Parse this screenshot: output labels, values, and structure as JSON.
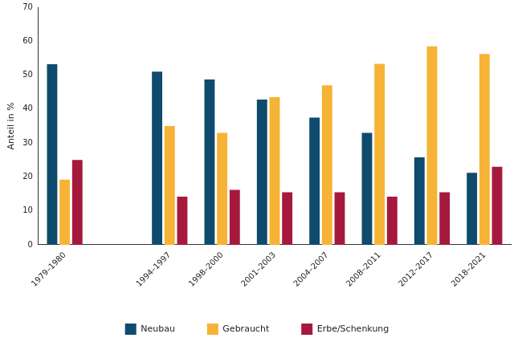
{
  "chart_data": {
    "type": "bar",
    "y_label": "Anteil in %",
    "categories": [
      "1979–1980",
      null,
      "1994–1997",
      "1998–2000",
      "2001–2003",
      "2004–2007",
      "2008–2011",
      "2012–2017",
      "2018–2021"
    ],
    "series": [
      {
        "name": "Neubau",
        "color": "#0e4b6c",
        "values": [
          53.2,
          null,
          51,
          48.7,
          42.8,
          37.5,
          33,
          25.8,
          21.2
        ]
      },
      {
        "name": "Gebraucht",
        "color": "#f6b335",
        "values": [
          19.2,
          null,
          35,
          33,
          43.5,
          47,
          53.3,
          58.5,
          56.2
        ]
      },
      {
        "name": "Erbe/Schenkung",
        "color": "#a5193d",
        "values": [
          25,
          null,
          14.2,
          16.2,
          15.5,
          15.5,
          14.2,
          15.5,
          23
        ]
      }
    ],
    "ylim": [
      0,
      70
    ],
    "yticks": [
      0,
      10,
      20,
      30,
      40,
      50,
      60,
      70
    ],
    "grid": false,
    "legend": "bottom"
  }
}
